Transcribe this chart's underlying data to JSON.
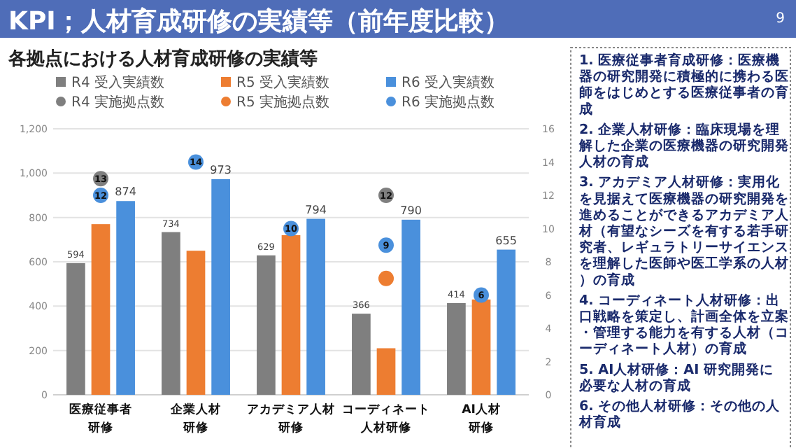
{
  "chart_data": {
    "type": "bar",
    "title": "KPI；人材育成研修の実績等（前年度比較）",
    "subtitle": "各拠点における人材育成研修の実績等",
    "categories": [
      "医療従事者研修",
      "企業人材研修",
      "アカデミア人材研修",
      "コーディネート人材研修",
      "AI人材研修"
    ],
    "series": [
      {
        "name": "R4 受入実績数",
        "color": "#7f7f7f",
        "values": [
          594,
          734,
          629,
          366,
          414
        ],
        "value_labels": [
          "594",
          "734",
          "629",
          "366",
          "414"
        ]
      },
      {
        "name": "R5 受入実績数",
        "color": "#ed7d31",
        "values": [
          770,
          650,
          720,
          210,
          430
        ]
      },
      {
        "name": "R6 受入実績数",
        "color": "#4a90dc",
        "values": [
          874,
          973,
          794,
          790,
          655
        ],
        "value_labels": [
          "874",
          "973",
          "794",
          "790",
          "655"
        ]
      },
      {
        "name": "R4 実施拠点数",
        "type": "scatter",
        "axis": "y2",
        "color": "#7f7f7f",
        "values": [
          13,
          null,
          null,
          12,
          null
        ],
        "value_labels": [
          "13",
          null,
          null,
          "12",
          null
        ]
      },
      {
        "name": "R5 実施拠点数",
        "type": "scatter",
        "axis": "y2",
        "color": "#ed7d31",
        "values": [
          null,
          null,
          null,
          7,
          null
        ]
      },
      {
        "name": "R6 実施拠点数",
        "type": "scatter",
        "axis": "y2",
        "color": "#4a90dc",
        "values": [
          12,
          14,
          10,
          9,
          6
        ],
        "value_labels": [
          "12",
          "14",
          "10",
          "9",
          "6"
        ]
      }
    ],
    "ylim": [
      0,
      1200
    ],
    "yticks": [
      0,
      200,
      400,
      600,
      800,
      {
        "value": 1000,
        "label": "1,000"
      },
      {
        "value": 1200,
        "label": "1,200"
      }
    ],
    "y2lim": [
      0,
      16
    ],
    "y2ticks": [
      0,
      2,
      4,
      6,
      8,
      10,
      12,
      14,
      16
    ],
    "grid": "y",
    "legend": "top",
    "marker": "circle",
    "annotations": [
      "9",
      "1. 医療従事者育成研修：医療機器の研究開発に積極的に携わる医師をはじめとする医療従事者の育成",
      "2. 企業人材研修：臨床現場を理解した企業の医療機器の研究開発人材の育成",
      "3. アカデミア人材研修：実用化を見据えて医療機器の研究開発を進めることができるアカデミア人材（有望なシーズを有する若手研究者、レギュラトリーサイエンスを理解した医師や医工学系の人材）の育成",
      "4. コーディネート人材研修：出口戦略を策定し、計画全体を立案・管理する能力を有する人材（コーディネート人材）の育成",
      "5. AI人材研修：AI 研究開発に必要な人材の育成",
      "6. その他人材研修：その他の人材育成"
    ]
  }
}
